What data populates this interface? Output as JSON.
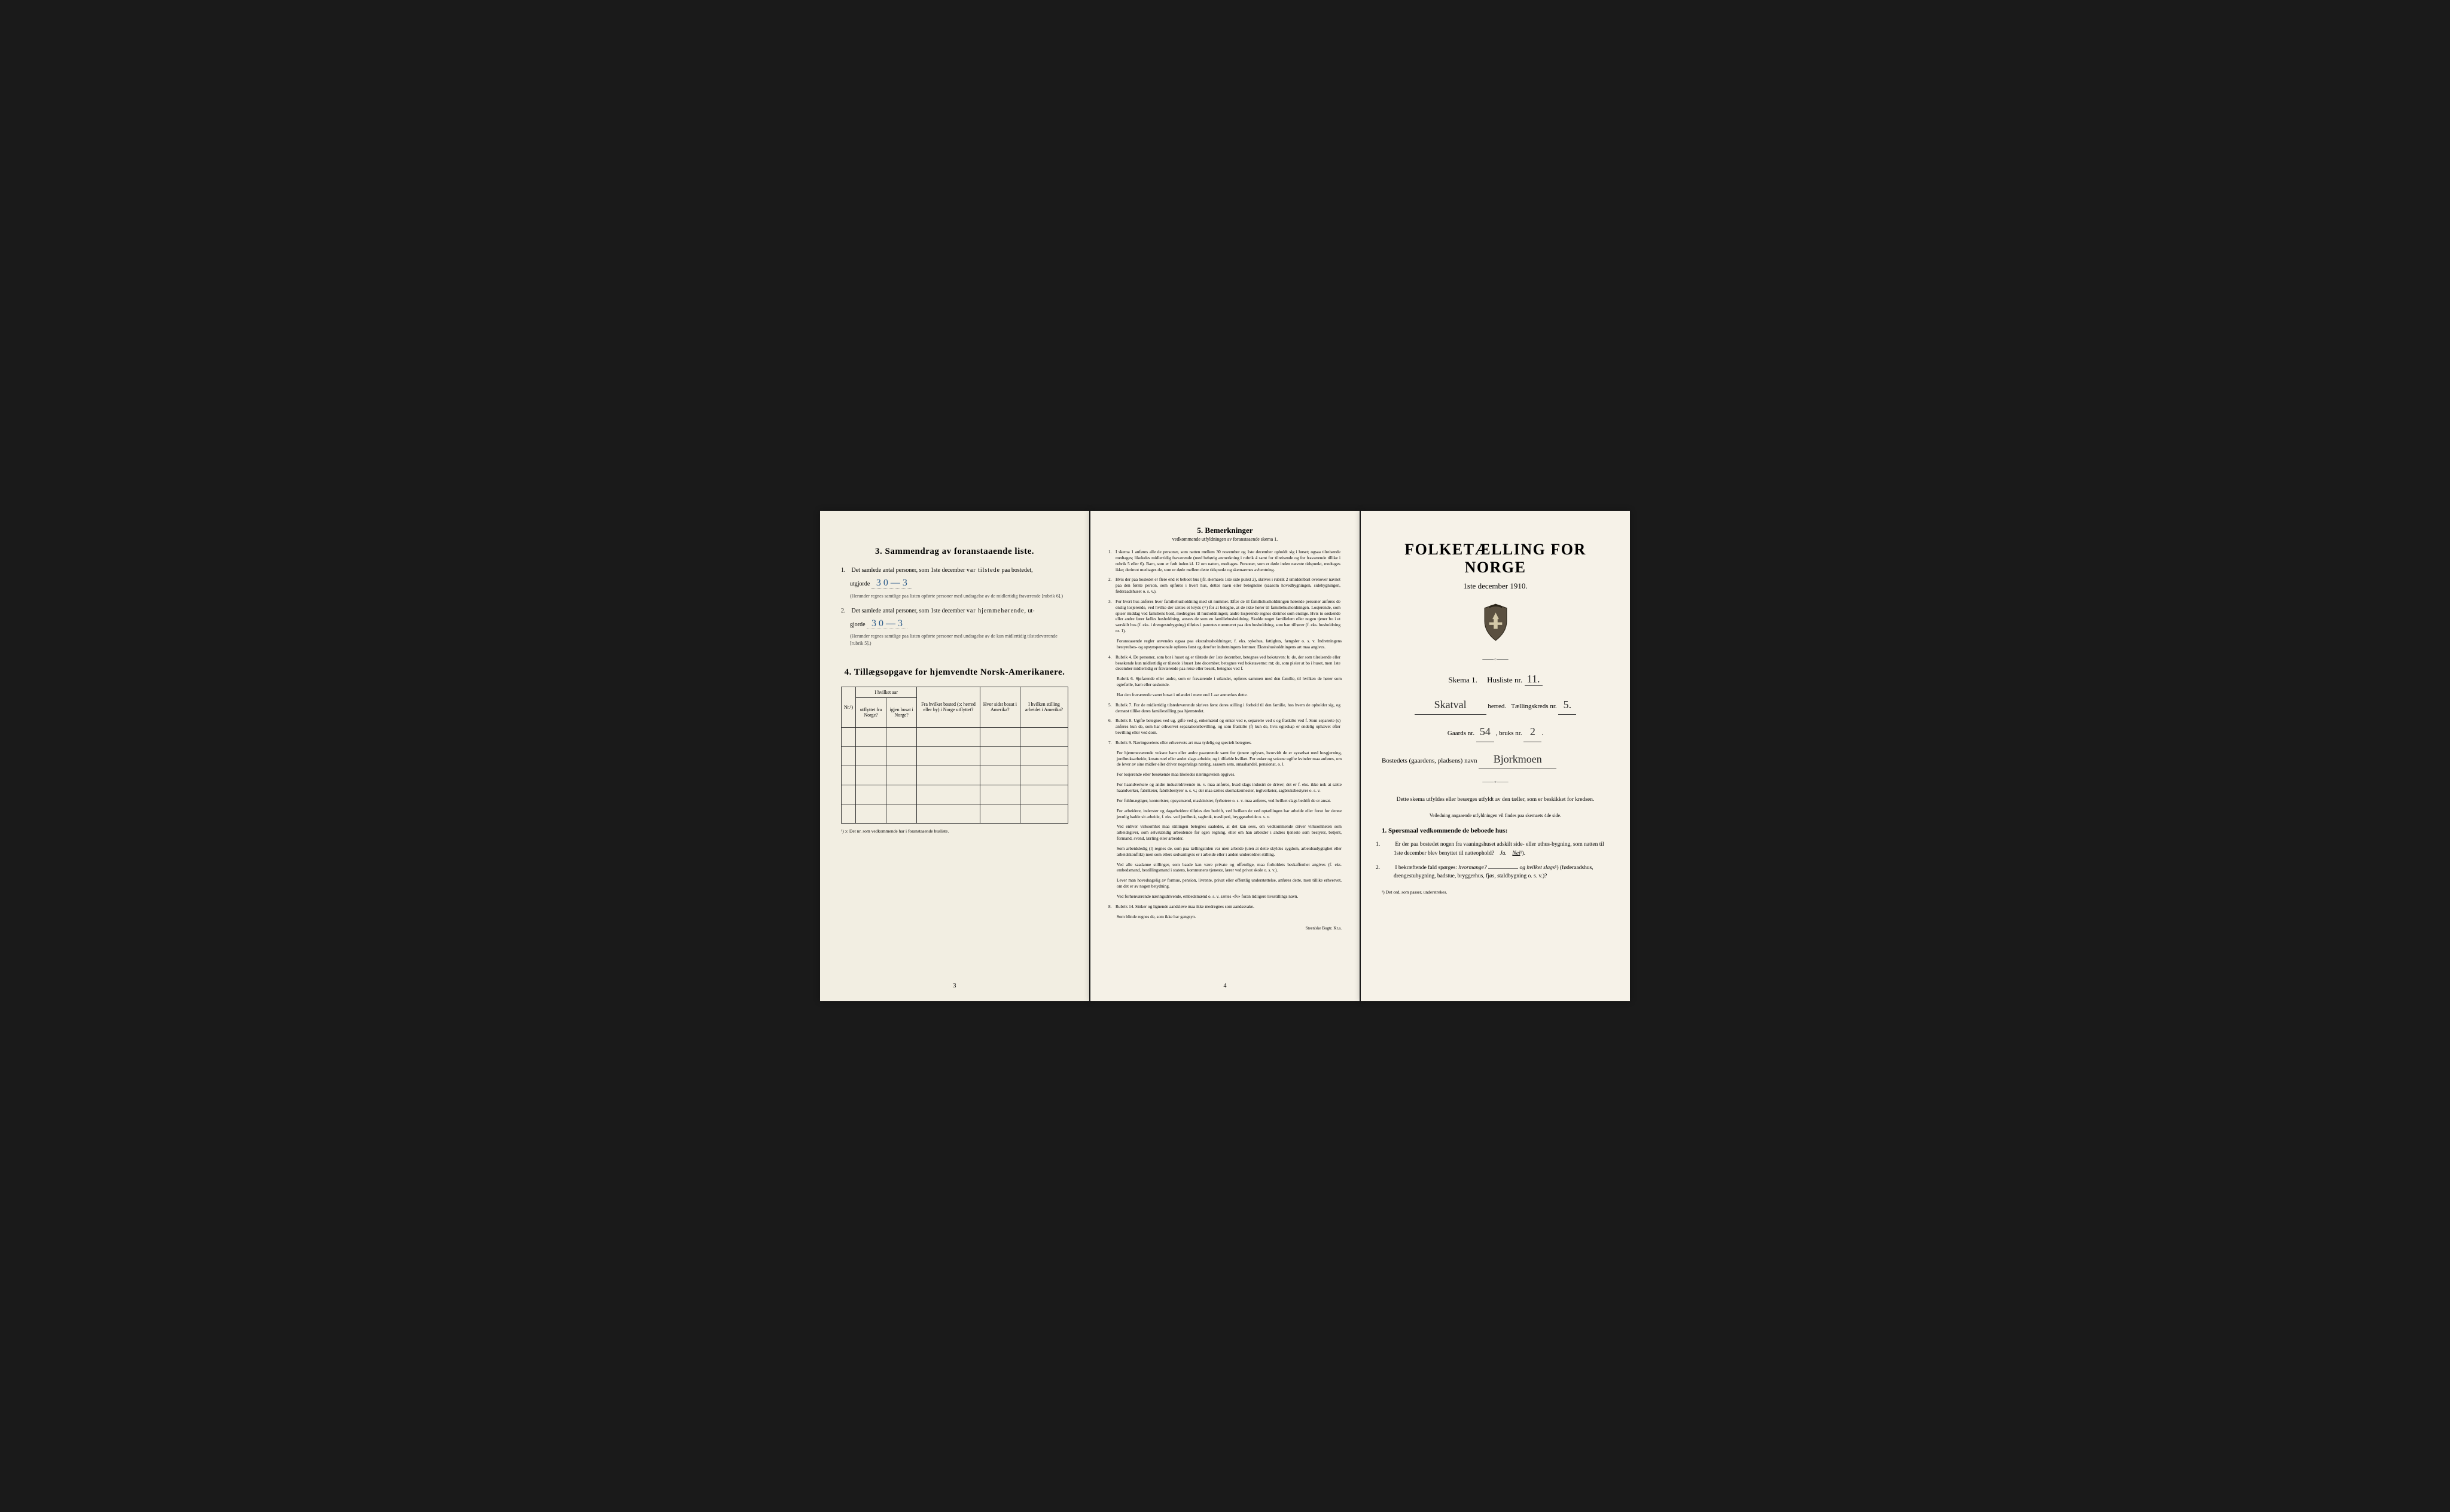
{
  "left": {
    "section3": {
      "num": "3.",
      "title": "Sammendrag av foranstaaende liste.",
      "item1": {
        "num": "1.",
        "text_a": "Det samlede antal personer, som 1ste december",
        "text_b": "var tilstede",
        "text_c": "paa bostedet,",
        "text_d": "utgjorde",
        "value": "3    0 — 3",
        "note": "(Herunder regnes samtlige paa listen opførte personer med undtagelse av de midlertidig fraværende [rubrik 6].)"
      },
      "item2": {
        "num": "2.",
        "text_a": "Det samlede antal personer, som 1ste december",
        "text_b": "var hjemmehørende,",
        "text_c": "ut-",
        "text_d": "gjorde",
        "value": "3    0 — 3",
        "note": "(Herunder regnes samtlige paa listen opførte personer med undtagelse av de kun midlertidig tilstedeværende [rubrik 5].)"
      }
    },
    "section4": {
      "num": "4.",
      "title": "Tillægsopgave for hjemvendte Norsk-Amerikanere.",
      "headers": {
        "col1": "Nr.¹)",
        "col2_top": "I hvilket aar",
        "col2a": "utflyttet fra Norge?",
        "col2b": "igjen bosat i Norge?",
        "col3": "Fra hvilket bosted (ɔ: herred eller by) i Norge utflyttet?",
        "col4": "Hvor sidst bosat i Amerika?",
        "col5": "I hvilken stilling arbeidet i Amerika?"
      },
      "footnote": "¹) ɔ: Det nr. som vedkommende har i foranstaaende husliste."
    },
    "page_num": "3"
  },
  "center": {
    "heading_num": "5.",
    "heading": "Bemerkninger",
    "sub": "vedkommende utfyldningen av foranstaaende skema 1.",
    "remarks": [
      {
        "n": "1.",
        "t": "I skema 1 anføres alle de personer, som natten mellem 30 november og 1ste december opholdt sig i huset; ogsaa tilreisende medtages; likeledes midlertidig fraværende (med behørig anmerkning i rubrik 4 samt for tilreisende og for fraværende tillike i rubrik 5 eller 6). Barn, som er født inden kl. 12 om natten, medtages. Personer, som er døde inden nævnte tidspunkt, medtages ikke; derimot medtages de, som er døde mellem dette tidspunkt og skemaernes avhentning."
      },
      {
        "n": "2.",
        "t": "Hvis der paa bostedet er flere end ét beboet hus (jfr. skemaets 1ste side punkt 2), skrives i rubrik 2 umiddelbart ovenover navnet paa den første person, som opføres i hvert hus, dettes navn eller betegnelse (saasom hovedbygningen, sidebygningen, føderaadshuset o. s. v.)."
      },
      {
        "n": "3.",
        "t": "For hvert hus anføres hver familiehusholdning med sit nummer. Efter de til familiehusholdningen hørende personer anføres de enslig losjerende, ved hvilke der sættes et kryds (×) for at betegne, at de ikke hører til familiehusholdningen. Losjerende, som spiser middag ved familiens bord, medregnes til husholdningen; andre losjerende regnes derimot som enslige. Hvis to søskende eller andre fører fælles husholdning, ansees de som en familiehusholdning. Skulde noget familielem eller nogen tjener bo i et særskilt hus (f. eks. i drengestubygning) tilføies i parentes nummeret paa den husholdning, som han tilhører (f. eks. husholdning nr. 1).",
        "extra": [
          "Foranstaaende regler anvendes ogsaa paa ekstrahusholdninger, f. eks. sykehus, fattighus, fængsler o. s. v. Indretningens bestyrelses- og opsynspersonale opføres først og derefter indretningens lemmer. Ekstrahusholdningens art maa angives."
        ]
      },
      {
        "n": "4.",
        "t": "Rubrik 4. De personer, som bor i huset og er tilstede der 1ste december, betegnes ved bokstaven: b; de, der som tilreisende eller besøkende kun midlertidig er tilstede i huset 1ste december, betegnes ved bokstaverne: mt; de, som pleier at bo i huset, men 1ste december midlertidig er fraværende paa reise eller besøk, betegnes ved f.",
        "extra": [
          "Rubrik 6. Sjøfarende eller andre, som er fraværende i utlandet, opføres sammen med den familie, til hvilken de hører som egtefælle, barn eller søskende.",
          "Har den fraværende været bosat i utlandet i mere end 1 aar anmerkes dette."
        ]
      },
      {
        "n": "5.",
        "t": "Rubrik 7. For de midlertidig tilstedeværende skrives først deres stilling i forhold til den familie, hos hvem de opholder sig, og dernæst tillike deres familiestilling paa hjemstedet."
      },
      {
        "n": "6.",
        "t": "Rubrik 8. Ugifte betegnes ved ug, gifte ved g, enkemænd og enker ved e, separerte ved s og fraskilte ved f. Som separerte (s) anføres kun de, som har erhvervet separationsbevilling, og som fraskilte (f) kun de, hvis egteskap er endelig ophævet efter bevilling eller ved dom."
      },
      {
        "n": "7.",
        "t": "Rubrik 9. Næringsveiens eller erhvervets art maa tydelig og specielt betegnes.",
        "extra": [
          "For hjemmeværende voksne barn eller andre paarørende samt for tjenere oplyses, hvorvidt de er sysselsat med husgjerning, jordbruksarbeide, kreaturstel eller andet slags arbeide, og i tilfælde hvilket. For enker og voksne ugifte kvinder maa anføres, om de lever av sine midler eller driver nogenslags næring, saasom søm, smaahandel, pensionat, o. l.",
          "For losjerende eller besøkende maa likeledes næringsveien opgives.",
          "For haandverkere og andre industridrivende m. v. maa anføres, hvad slags industri de driver; det er f. eks. ikke nok at sætte haandverker, fabrikeier, fabrikbestyrer o. s. v.; der maa sættes skomakermester, teglverkeier, sagbruksbestyrer o. s. v.",
          "For fuldmægtiger, kontorister, opsysmænd, maskinister, fyrbøtere o. s. v. maa anføres, ved hvilket slags bedrift de er ansat.",
          "For arbeidere, inderster og dagarbeidere tilføies den bedrift, ved hvilken de ved optællingen har arbeide eller forut for denne jevnlig hadde sit arbeide, f. eks. ved jordbruk, sagbruk, træsliperi, bryggearbeide o. s. v.",
          "Ved enhver virksomhet maa stillingen betegnes saaledes, at det kan sees, om vedkommende driver virksomheten som arbeidsgiver, som selvstændig arbeidende for egen regning, eller om han arbeider i andres tjeneste som bestyrer, betjent, formand, svend, lærling eller arbeider.",
          "Som arbeidsledig (l) regnes de, som paa tællingstiden var uten arbeide (uten at dette skyldes sygdom, arbeidsudygtighet eller arbeidskonflikt) men som ellers sedvanligvis er i arbeide eller i anden underordnet stilling.",
          "Ved alle saadanne stillinger, som baade kan være private og offentlige, maa forholdets beskaffenhet angives (f. eks. embedsmand, bestillingsmand i statens, kommunens tjeneste, lærer ved privat skole o. s. v.).",
          "Lever man hovedsagelig av formue, pension, livrente, privat eller offentlig understøttelse, anføres dette, men tillike erhvervet, om det er av nogen betydning.",
          "Ved forhenværende næringsdrivende, embedsmænd o. s. v. sættes «fv» foran tidligere livsstillings navn."
        ]
      },
      {
        "n": "8.",
        "t": "Rubrik 14. Sinker og lignende aandsløve maa ikke medregnes som aandssvake.",
        "extra": [
          "Som blinde regnes de, som ikke har gangsyn."
        ]
      }
    ],
    "page_num": "4",
    "printer": "Steen'ske Bogtr. Kr.a."
  },
  "right": {
    "title": "FOLKETÆLLING FOR NORGE",
    "date": "1ste december 1910.",
    "skema": "Skema 1.",
    "husliste": "Husliste nr.",
    "husliste_val": "11.",
    "herred_val": "Skatval",
    "herred_label": "herred.",
    "kreds_label": "Tællingskreds nr.",
    "kreds_val": "5.",
    "gaard_label": "Gaards nr.",
    "gaard_val": "54",
    "bruk_label": ", bruks nr.",
    "bruk_val": "2",
    "bosted_label": "Bostedets (gaardens, pladsens) navn",
    "bosted_val": "Bjorkmoen",
    "instruction": "Dette skema utfyldes eller besørges utfyldt av den tæller, som er beskikket for kredsen.",
    "instruction_sub": "Veiledning angaaende utfyldningen vil findes paa skemaets 4de side.",
    "q_head_num": "1.",
    "q_head": "Spørsmaal vedkommende de beboede hus:",
    "q1": {
      "num": "1.",
      "text": "Er der paa bostedet nogen fra vaaningshuset adskilt side- eller uthus-bygning, som natten til 1ste december blev benyttet til natteophold?",
      "ja": "Ja.",
      "nei": "Nei",
      "sup": "¹)."
    },
    "q2": {
      "num": "2.",
      "text_a": "I bekræftende fald spørges:",
      "text_b": "hvormange?",
      "text_c": "og hvilket slags",
      "sup": "¹)",
      "text_d": "(føderaadshus, drengestubygning, badstue, bryggerhus, fjøs, staldbygning o. s. v.)?"
    },
    "footnote": "¹) Det ord, som passer, understrekes."
  }
}
